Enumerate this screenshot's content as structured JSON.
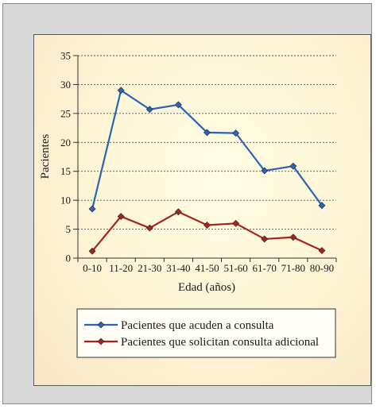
{
  "chart_data": {
    "type": "line",
    "categories": [
      "0-10",
      "11-20",
      "21-30",
      "31-40",
      "41-50",
      "51-60",
      "61-70",
      "71-80",
      "80-90"
    ],
    "series": [
      {
        "name": "Pacientes que acuden a consulta",
        "color": "#2e64b4",
        "values": [
          8.5,
          29,
          25.7,
          26.5,
          21.7,
          21.6,
          15.1,
          15.9,
          9.1
        ]
      },
      {
        "name": "Pacientes que solicitan consulta adicional",
        "color": "#a8231e",
        "values": [
          1.2,
          7.2,
          5.2,
          8,
          5.7,
          6,
          3.3,
          3.6,
          1.3
        ]
      }
    ],
    "xlabel": "Edad (años)",
    "ylabel": "Pacientes",
    "ylim": [
      0,
      35
    ],
    "yticks": [
      "0",
      "5",
      "10",
      "15",
      "20",
      "25",
      "30",
      "35"
    ],
    "grid": "horizontal-dashed",
    "legend_position": "bottom"
  }
}
